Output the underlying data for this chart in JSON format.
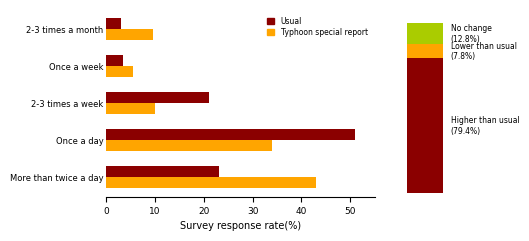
{
  "categories": [
    "2-3 times a month",
    "Once a week",
    "2-3 times a week",
    "Once a day",
    "More than twice a day"
  ],
  "usual_values": [
    3,
    3.5,
    21,
    51,
    23
  ],
  "typhoon_values": [
    9.5,
    5.5,
    10,
    34,
    43
  ],
  "usual_color": "#8B0000",
  "typhoon_color": "#FFA500",
  "bar_height": 0.3,
  "xlabel": "Survey response rate(%)",
  "xlim": [
    0,
    55
  ],
  "xticks": [
    0,
    10,
    20,
    30,
    40,
    50
  ],
  "legend_usual": "Usual",
  "legend_typhoon": "Typhoon special report",
  "stacked_labels": [
    "No change\n(12.8%)",
    "Lower than usual\n(7.8%)",
    "Higher than usual\n(79.4%)"
  ],
  "stacked_values": [
    12.8,
    7.8,
    79.4
  ],
  "stacked_colors": [
    "#AACC00",
    "#FFA500",
    "#8B0000"
  ]
}
